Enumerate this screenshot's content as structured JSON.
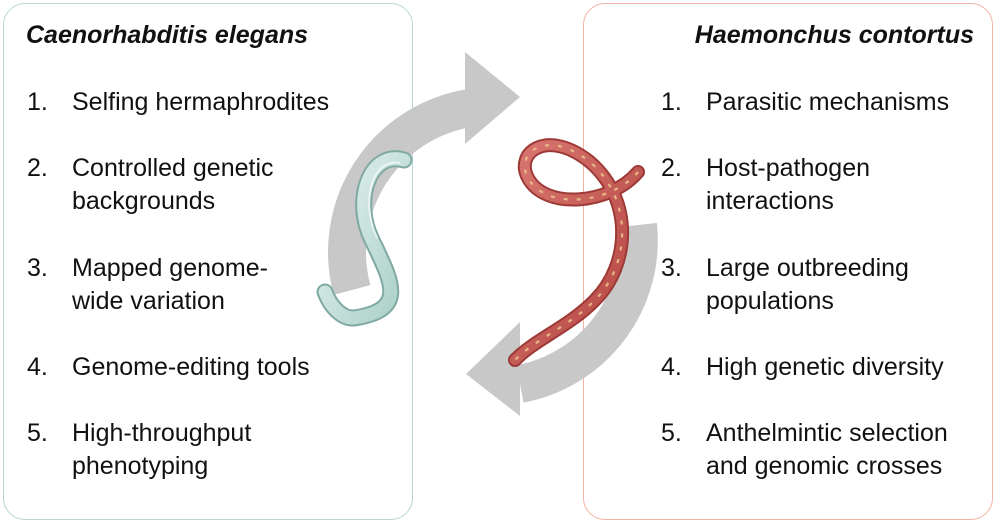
{
  "left_panel": {
    "title": "Caenorhabditis elegans",
    "items": [
      {
        "num": "1.",
        "text": "Selfing hermaphrodites"
      },
      {
        "num": "2.",
        "text": "Controlled genetic backgrounds"
      },
      {
        "num": "3.",
        "text": "Mapped genome-wide variation"
      },
      {
        "num": "4.",
        "text": "Genome-editing tools"
      },
      {
        "num": "5.",
        "text": "High-throughput phenotyping"
      }
    ],
    "border_color": "#b9d6cf"
  },
  "right_panel": {
    "title": "Haemonchus contortus",
    "items": [
      {
        "num": "1.",
        "text": "Parasitic mechanisms"
      },
      {
        "num": "2.",
        "text": "Host-pathogen interactions"
      },
      {
        "num": "3.",
        "text": "Large outbreeding populations"
      },
      {
        "num": "4.",
        "text": "High genetic diversity"
      },
      {
        "num": "5.",
        "text": "Anthelmintic selection and genomic crosses"
      }
    ],
    "border_color": "#f2b2a2"
  },
  "colors": {
    "cycle_arrow": "#c8c8c8",
    "c_elegans_worm": "#cde6e1",
    "h_contortus_worm": "#cc5f5a",
    "h_contortus_stripe": "#e9c188"
  },
  "icons": [
    "cycle-arrows",
    "c-elegans-worm",
    "h-contortus-worm"
  ]
}
